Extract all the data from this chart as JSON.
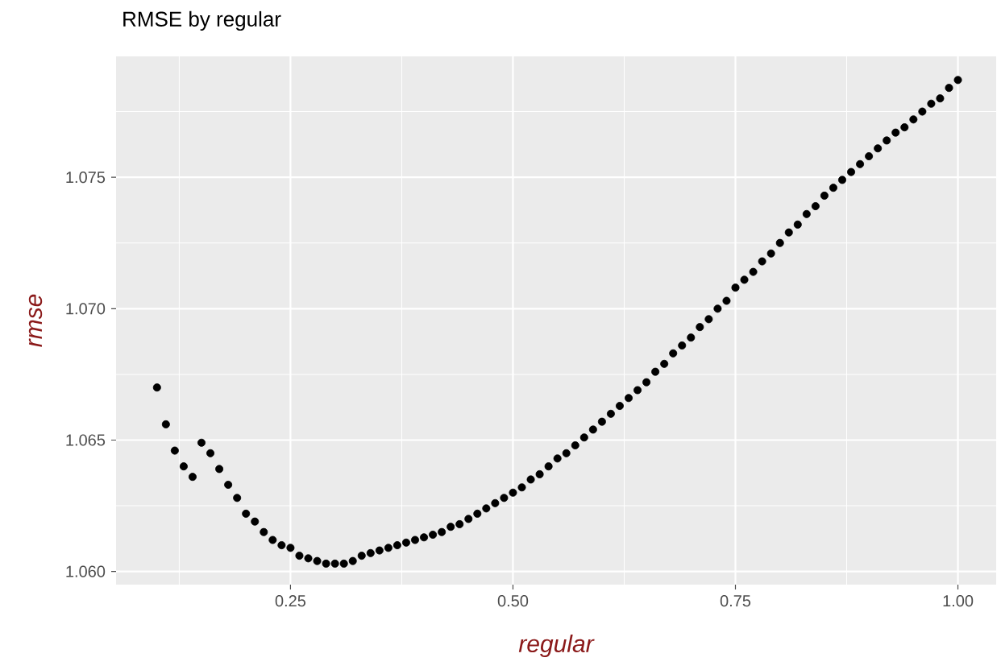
{
  "chart_data": {
    "type": "scatter",
    "title": "RMSE by regular",
    "xlabel": "regular",
    "ylabel": "rmse",
    "color": "#000000",
    "grid": true,
    "x": [
      0.1,
      0.11,
      0.12,
      0.13,
      0.14,
      0.15,
      0.16,
      0.17,
      0.18,
      0.19,
      0.2,
      0.21,
      0.22,
      0.23,
      0.24,
      0.25,
      0.26,
      0.27,
      0.28,
      0.29,
      0.3,
      0.31,
      0.32,
      0.33,
      0.34,
      0.35,
      0.36,
      0.37,
      0.38,
      0.39,
      0.4,
      0.41,
      0.42,
      0.43,
      0.44,
      0.45,
      0.46,
      0.47,
      0.48,
      0.49,
      0.5,
      0.51,
      0.52,
      0.53,
      0.54,
      0.55,
      0.56,
      0.57,
      0.58,
      0.59,
      0.6,
      0.61,
      0.62,
      0.63,
      0.64,
      0.65,
      0.66,
      0.67,
      0.68,
      0.69,
      0.7,
      0.71,
      0.72,
      0.73,
      0.74,
      0.75,
      0.76,
      0.77,
      0.78,
      0.79,
      0.8,
      0.81,
      0.82,
      0.83,
      0.84,
      0.85,
      0.86,
      0.87,
      0.88,
      0.89,
      0.9,
      0.91,
      0.92,
      0.93,
      0.94,
      0.95,
      0.96,
      0.97,
      0.98,
      0.99,
      1.0
    ],
    "values": [
      1.067,
      1.0656,
      1.0646,
      1.064,
      1.0636,
      1.0649,
      1.0645,
      1.0639,
      1.0633,
      1.0628,
      1.0622,
      1.0619,
      1.0615,
      1.0612,
      1.061,
      1.0609,
      1.0606,
      1.0605,
      1.0604,
      1.0603,
      1.0603,
      1.0603,
      1.0604,
      1.0606,
      1.0607,
      1.0608,
      1.0609,
      1.061,
      1.0611,
      1.0612,
      1.0613,
      1.0614,
      1.0615,
      1.0617,
      1.0618,
      1.062,
      1.0622,
      1.0624,
      1.0626,
      1.0628,
      1.063,
      1.0632,
      1.0635,
      1.0637,
      1.064,
      1.0643,
      1.0645,
      1.0648,
      1.0651,
      1.0654,
      1.0657,
      1.066,
      1.0663,
      1.0666,
      1.0669,
      1.0672,
      1.0676,
      1.0679,
      1.0683,
      1.0686,
      1.0689,
      1.0693,
      1.0696,
      1.07,
      1.0703,
      1.0708,
      1.0711,
      1.0714,
      1.0718,
      1.0721,
      1.0725,
      1.0729,
      1.0732,
      1.0736,
      1.0739,
      1.0743,
      1.0746,
      1.0749,
      1.0752,
      1.0755,
      1.0758,
      1.0761,
      1.0764,
      1.0767,
      1.0769,
      1.0772,
      1.0775,
      1.0778,
      1.078,
      1.0784,
      1.0787
    ],
    "xlim": [
      0.054,
      1.043
    ],
    "ylim": [
      1.0595,
      1.0796
    ],
    "xticks": [
      0.25,
      {
        "value": 0.5,
        "label": "0.50"
      },
      0.75,
      {
        "value": 1.0,
        "label": "1.00"
      }
    ],
    "yticks": [
      {
        "value": 1.06,
        "label": "1.060"
      },
      1.065,
      {
        "value": 1.07,
        "label": "1.070"
      },
      1.075
    ]
  }
}
